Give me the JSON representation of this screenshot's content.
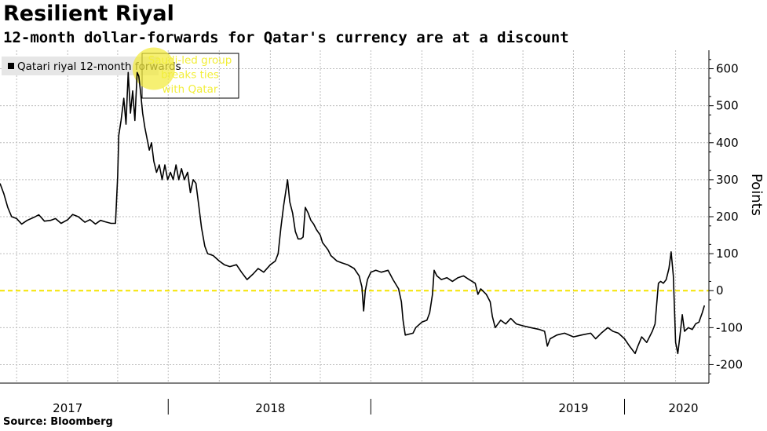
{
  "header": {
    "title": "Resilient Riyal",
    "subtitle": "12-month dollar-forwards for Qatar's currency are at a discount"
  },
  "footer": {
    "source": "Source: Bloomberg"
  },
  "colors": {
    "series": "#000000",
    "zero_line": "#f5e400",
    "annotation": "#f2ee3a",
    "highlight": "#f3ea3c",
    "grid": "#bdbdbd",
    "legend_bg": "#e6e6e6"
  },
  "chart_data": {
    "type": "line",
    "title": "Resilient Riyal",
    "subtitle": "12-month dollar-forwards for Qatar's currency are at a discount",
    "xlabel": "",
    "ylabel": "Points",
    "y_axis_position": "right",
    "ylim": [
      -250,
      650
    ],
    "yticks": [
      600,
      500,
      400,
      300,
      200,
      100,
      0,
      -100,
      -200
    ],
    "xlim": [
      "2016-09-01",
      "2020-03-01"
    ],
    "x_year_labels": [
      {
        "label": "2017",
        "center": "2017-01-01"
      },
      {
        "label": "2018",
        "center": "2018-01-01"
      },
      {
        "label": "2019",
        "center": "2019-07-01"
      },
      {
        "label": "2020",
        "center": "2020-01-15"
      }
    ],
    "x_year_separators": [
      "2017-07-01",
      "2018-07-01",
      "2019-10-01"
    ],
    "grid": true,
    "legend": {
      "position": "top-left",
      "entries": [
        "Qatari riyal 12-month forwards"
      ]
    },
    "reference_line": {
      "y": 0,
      "style": "dashed"
    },
    "annotations": [
      {
        "text": [
          "Saudi-led group",
          "breaks ties",
          "with Qatar"
        ],
        "date": "2017-06-05",
        "y": 600
      }
    ],
    "series": [
      {
        "name": "Qatari riyal 12-month forwards",
        "points": [
          [
            "2016-09-01",
            290
          ],
          [
            "2016-09-08",
            262
          ],
          [
            "2016-09-15",
            225
          ],
          [
            "2016-09-22",
            200
          ],
          [
            "2016-10-01",
            195
          ],
          [
            "2016-10-10",
            180
          ],
          [
            "2016-10-20",
            190
          ],
          [
            "2016-11-01",
            198
          ],
          [
            "2016-11-10",
            205
          ],
          [
            "2016-11-20",
            188
          ],
          [
            "2016-12-01",
            190
          ],
          [
            "2016-12-10",
            195
          ],
          [
            "2016-12-20",
            182
          ],
          [
            "2017-01-01",
            192
          ],
          [
            "2017-01-10",
            206
          ],
          [
            "2017-01-20",
            200
          ],
          [
            "2017-02-01",
            185
          ],
          [
            "2017-02-10",
            192
          ],
          [
            "2017-02-20",
            180
          ],
          [
            "2017-03-01",
            190
          ],
          [
            "2017-03-10",
            186
          ],
          [
            "2017-03-20",
            182
          ],
          [
            "2017-03-28",
            182
          ],
          [
            "2017-04-01",
            310
          ],
          [
            "2017-04-03",
            420
          ],
          [
            "2017-04-07",
            460
          ],
          [
            "2017-04-12",
            520
          ],
          [
            "2017-04-16",
            450
          ],
          [
            "2017-04-20",
            590
          ],
          [
            "2017-04-24",
            480
          ],
          [
            "2017-04-28",
            540
          ],
          [
            "2017-05-02",
            460
          ],
          [
            "2017-05-06",
            590
          ],
          [
            "2017-05-09",
            580
          ],
          [
            "2017-05-12",
            540
          ],
          [
            "2017-05-16",
            480
          ],
          [
            "2017-05-20",
            440
          ],
          [
            "2017-05-24",
            410
          ],
          [
            "2017-05-28",
            380
          ],
          [
            "2017-06-01",
            400
          ],
          [
            "2017-06-05",
            350
          ],
          [
            "2017-06-10",
            320
          ],
          [
            "2017-06-15",
            340
          ],
          [
            "2017-06-20",
            300
          ],
          [
            "2017-06-25",
            340
          ],
          [
            "2017-06-30",
            300
          ],
          [
            "2017-07-05",
            320
          ],
          [
            "2017-07-10",
            300
          ],
          [
            "2017-07-15",
            340
          ],
          [
            "2017-07-20",
            300
          ],
          [
            "2017-07-25",
            330
          ],
          [
            "2017-07-30",
            300
          ],
          [
            "2017-08-05",
            320
          ],
          [
            "2017-08-10",
            265
          ],
          [
            "2017-08-15",
            300
          ],
          [
            "2017-08-20",
            290
          ],
          [
            "2017-08-25",
            230
          ],
          [
            "2017-08-30",
            170
          ],
          [
            "2017-09-05",
            120
          ],
          [
            "2017-09-10",
            100
          ],
          [
            "2017-09-20",
            95
          ],
          [
            "2017-10-01",
            80
          ],
          [
            "2017-10-10",
            70
          ],
          [
            "2017-10-20",
            65
          ],
          [
            "2017-11-01",
            70
          ],
          [
            "2017-11-10",
            50
          ],
          [
            "2017-11-20",
            30
          ],
          [
            "2017-12-01",
            45
          ],
          [
            "2017-12-10",
            60
          ],
          [
            "2017-12-20",
            50
          ],
          [
            "2018-01-01",
            70
          ],
          [
            "2018-01-10",
            80
          ],
          [
            "2018-01-15",
            100
          ],
          [
            "2018-01-20",
            170
          ],
          [
            "2018-01-25",
            230
          ],
          [
            "2018-02-01",
            300
          ],
          [
            "2018-02-05",
            240
          ],
          [
            "2018-02-10",
            210
          ],
          [
            "2018-02-15",
            160
          ],
          [
            "2018-02-20",
            140
          ],
          [
            "2018-02-25",
            140
          ],
          [
            "2018-03-01",
            145
          ],
          [
            "2018-03-05",
            225
          ],
          [
            "2018-03-10",
            210
          ],
          [
            "2018-03-15",
            190
          ],
          [
            "2018-03-20",
            180
          ],
          [
            "2018-03-25",
            165
          ],
          [
            "2018-04-01",
            150
          ],
          [
            "2018-04-05",
            130
          ],
          [
            "2018-04-10",
            120
          ],
          [
            "2018-04-15",
            110
          ],
          [
            "2018-04-20",
            95
          ],
          [
            "2018-05-01",
            80
          ],
          [
            "2018-05-10",
            75
          ],
          [
            "2018-05-20",
            70
          ],
          [
            "2018-06-01",
            60
          ],
          [
            "2018-06-10",
            40
          ],
          [
            "2018-06-15",
            10
          ],
          [
            "2018-06-18",
            -55
          ],
          [
            "2018-06-21",
            0
          ],
          [
            "2018-06-25",
            30
          ],
          [
            "2018-07-01",
            50
          ],
          [
            "2018-07-10",
            55
          ],
          [
            "2018-07-20",
            50
          ],
          [
            "2018-08-01",
            55
          ],
          [
            "2018-08-10",
            30
          ],
          [
            "2018-08-20",
            5
          ],
          [
            "2018-08-25",
            -30
          ],
          [
            "2018-08-28",
            -80
          ],
          [
            "2018-09-01",
            -120
          ],
          [
            "2018-09-15",
            -115
          ],
          [
            "2018-09-20",
            -100
          ],
          [
            "2018-10-01",
            -85
          ],
          [
            "2018-10-10",
            -80
          ],
          [
            "2018-10-15",
            -60
          ],
          [
            "2018-10-20",
            -10
          ],
          [
            "2018-10-23",
            55
          ],
          [
            "2018-10-28",
            40
          ],
          [
            "2018-11-05",
            30
          ],
          [
            "2018-11-15",
            35
          ],
          [
            "2018-11-25",
            25
          ],
          [
            "2018-12-05",
            35
          ],
          [
            "2018-12-15",
            40
          ],
          [
            "2018-12-25",
            30
          ],
          [
            "2019-01-05",
            20
          ],
          [
            "2019-01-10",
            -10
          ],
          [
            "2019-01-15",
            5
          ],
          [
            "2019-01-25",
            -10
          ],
          [
            "2019-02-01",
            -30
          ],
          [
            "2019-02-05",
            -70
          ],
          [
            "2019-02-10",
            -100
          ],
          [
            "2019-02-20",
            -80
          ],
          [
            "2019-03-01",
            -90
          ],
          [
            "2019-03-10",
            -75
          ],
          [
            "2019-03-20",
            -90
          ],
          [
            "2019-04-01",
            -95
          ],
          [
            "2019-04-15",
            -100
          ],
          [
            "2019-05-01",
            -105
          ],
          [
            "2019-05-10",
            -110
          ],
          [
            "2019-05-15",
            -150
          ],
          [
            "2019-05-20",
            -130
          ],
          [
            "2019-06-01",
            -120
          ],
          [
            "2019-06-15",
            -115
          ],
          [
            "2019-07-01",
            -125
          ],
          [
            "2019-07-15",
            -120
          ],
          [
            "2019-08-01",
            -115
          ],
          [
            "2019-08-10",
            -130
          ],
          [
            "2019-08-20",
            -115
          ],
          [
            "2019-09-01",
            -100
          ],
          [
            "2019-09-10",
            -110
          ],
          [
            "2019-09-20",
            -115
          ],
          [
            "2019-10-01",
            -130
          ],
          [
            "2019-10-10",
            -150
          ],
          [
            "2019-10-20",
            -170
          ],
          [
            "2019-10-25",
            -150
          ],
          [
            "2019-11-01",
            -125
          ],
          [
            "2019-11-10",
            -140
          ],
          [
            "2019-11-20",
            -110
          ],
          [
            "2019-11-25",
            -90
          ],
          [
            "2019-12-01",
            20
          ],
          [
            "2019-12-05",
            25
          ],
          [
            "2019-12-10",
            20
          ],
          [
            "2019-12-15",
            30
          ],
          [
            "2019-12-20",
            60
          ],
          [
            "2019-12-24",
            105
          ],
          [
            "2019-12-28",
            40
          ],
          [
            "2020-01-01",
            -140
          ],
          [
            "2020-01-05",
            -170
          ],
          [
            "2020-01-09",
            -120
          ],
          [
            "2020-01-13",
            -65
          ],
          [
            "2020-01-17",
            -110
          ],
          [
            "2020-01-24",
            -100
          ],
          [
            "2020-01-31",
            -105
          ],
          [
            "2020-02-06",
            -90
          ],
          [
            "2020-02-12",
            -85
          ],
          [
            "2020-02-18",
            -60
          ],
          [
            "2020-02-22",
            -40
          ]
        ]
      }
    ]
  }
}
